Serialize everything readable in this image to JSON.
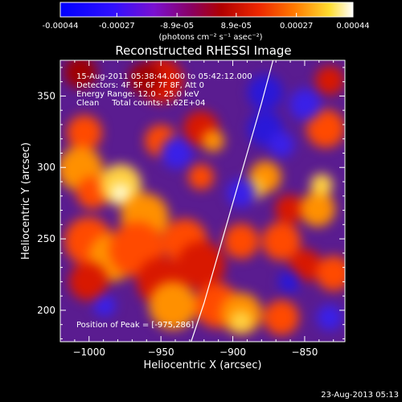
{
  "colorbar": {
    "tick_labels": [
      "-0.00044",
      "-0.00027",
      "-8.9e-05",
      "8.9e-05",
      "0.00027",
      "0.00044"
    ],
    "tick_values": [
      -0.00044,
      -0.00027,
      -8.9e-05,
      8.9e-05,
      0.00027,
      0.00044
    ],
    "range": [
      -0.00044,
      0.00044
    ],
    "units_label": "(photons cm⁻² s⁻¹ asec⁻²)"
  },
  "chart_data": {
    "type": "heatmap",
    "title": "Reconstructed RHESSI Image",
    "xlabel": "Heliocentric X (arcsec)",
    "ylabel": "Heliocentric Y (arcsec)",
    "xlim": [
      -1020,
      -822
    ],
    "ylim": [
      178,
      375
    ],
    "x_ticks": [
      -1000,
      -950,
      -900,
      -850
    ],
    "x_tick_labels": [
      "−1000",
      "−950",
      "−900",
      "−850"
    ],
    "y_ticks": [
      200,
      250,
      300,
      350
    ],
    "y_tick_labels": [
      "200",
      "250",
      "300",
      "350"
    ],
    "grid": false,
    "colormap": "rainbow-like (blue-purple-red-orange-yellow-white)",
    "info_lines": [
      "15-Aug-2011 05:38:44.000 to 05:42:12.000",
      "Detectors: 4F 5F 6F 7F 8F, Att 0",
      "Energy Range: 12.0 - 25.0 keV",
      "Clean     Total counts: 1.62E+04"
    ],
    "peak_label": "Position of Peak = [-975,286]",
    "peak_position": [
      -975,
      286
    ],
    "limb_curve": {
      "x": [
        -929,
        -920,
        -910,
        -900,
        -890,
        -880,
        -872
      ],
      "y": [
        178,
        205,
        240,
        275,
        310,
        345,
        375
      ]
    }
  },
  "footer": {
    "timestamp": "23-Aug-2013 05:13"
  }
}
